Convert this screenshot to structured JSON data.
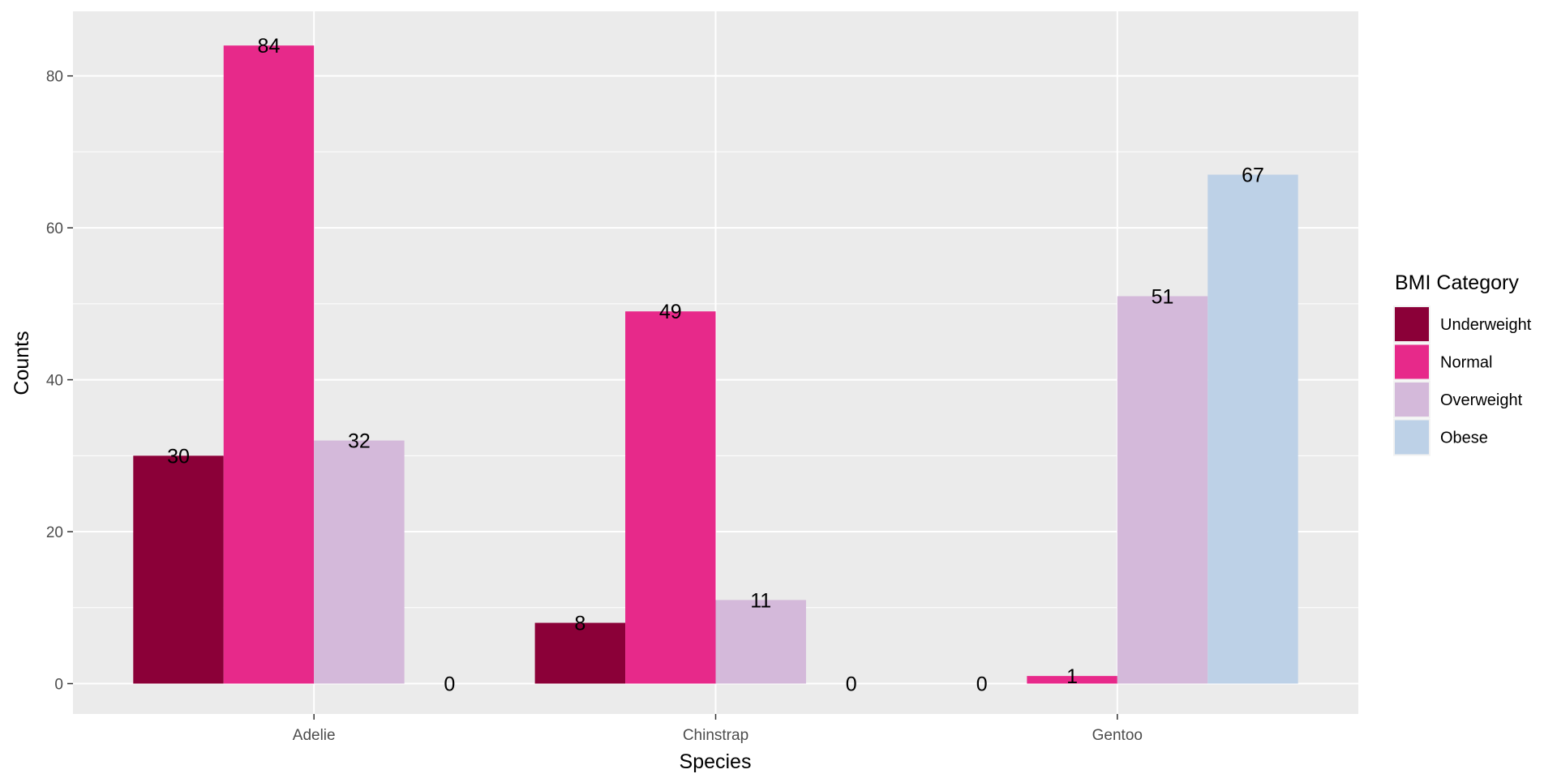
{
  "chart_data": {
    "type": "bar",
    "title": "",
    "xlabel": "Species",
    "ylabel": "Counts",
    "categories": [
      "Adelie",
      "Chinstrap",
      "Gentoo"
    ],
    "series": [
      {
        "name": "Underweight",
        "color": "#8B0038",
        "values": [
          30,
          8,
          0
        ]
      },
      {
        "name": "Normal",
        "color": "#E7298A",
        "values": [
          84,
          49,
          1
        ]
      },
      {
        "name": "Overweight",
        "color": "#D4B9DA",
        "values": [
          32,
          11,
          51
        ]
      },
      {
        "name": "Obese",
        "color": "#BDD1E7",
        "values": [
          0,
          0,
          67
        ]
      }
    ],
    "ylim": [
      -4,
      88.5
    ],
    "yticks": [
      0,
      20,
      40,
      60,
      80
    ],
    "grid": true,
    "panel_background": "#EBEBEB",
    "legend": {
      "title": "BMI Category",
      "position": "right"
    }
  }
}
